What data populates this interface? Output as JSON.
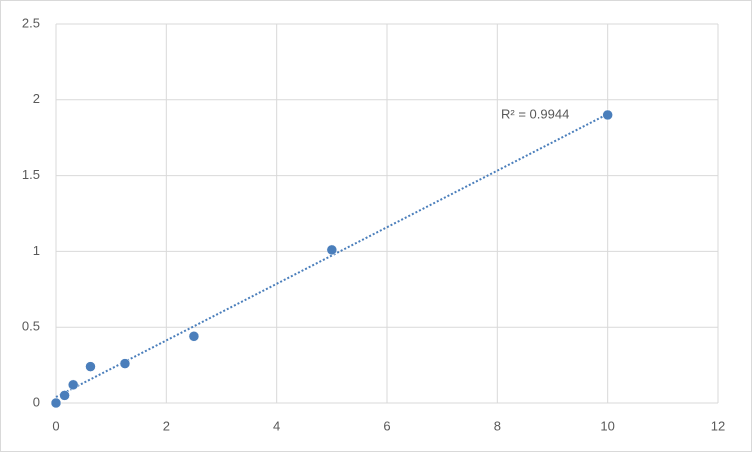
{
  "chart_data": {
    "type": "scatter",
    "x": [
      0,
      0.156,
      0.312,
      0.625,
      1.25,
      2.5,
      5,
      10
    ],
    "values": [
      0,
      0.05,
      0.12,
      0.24,
      0.26,
      0.44,
      1.01,
      1.9
    ],
    "color": "#4a7ebb",
    "xlim": [
      0,
      12
    ],
    "xticks": [
      0,
      2,
      4,
      6,
      8,
      10,
      12
    ],
    "ylim": [
      0,
      2.5
    ],
    "yticks": [
      0,
      0.5,
      1,
      1.5,
      2,
      2.5
    ],
    "grid": true,
    "trendline": "linear",
    "annotation": "R² = 0.9944"
  }
}
